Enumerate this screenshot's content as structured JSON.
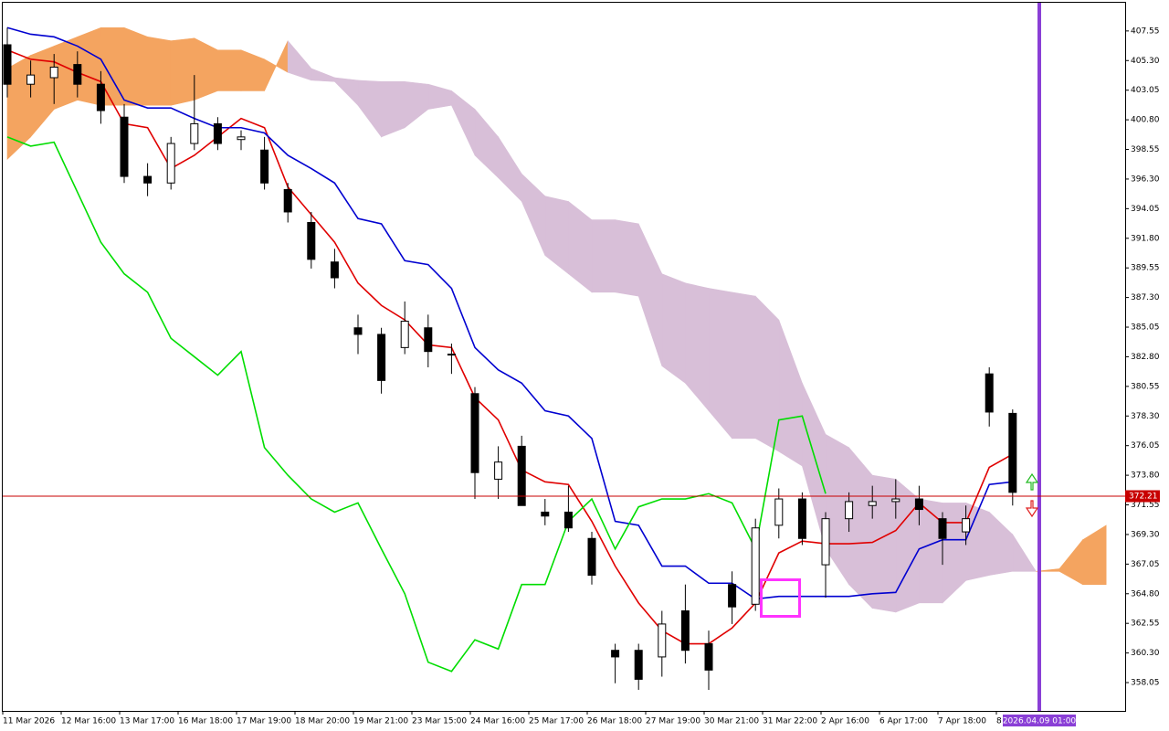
{
  "chart_data": {
    "type": "candlestick",
    "ylim": [
      355.9,
      409.9
    ],
    "yticks": [
      407.55,
      {
        "value": 405.3,
        "label": "405.30"
      },
      403.05,
      {
        "value": 400.8,
        "label": "400.80"
      },
      398.55,
      {
        "value": 396.3,
        "label": "396.30"
      },
      394.05,
      {
        "value": 391.8,
        "label": "391.80"
      },
      389.55,
      {
        "value": 387.3,
        "label": "387.30"
      },
      385.05,
      {
        "value": 382.8,
        "label": "382.80"
      },
      380.55,
      {
        "value": 378.3,
        "label": "378.30"
      },
      376.05,
      {
        "value": 373.8,
        "label": "373.80"
      },
      371.55,
      {
        "value": 369.3,
        "label": "369.30"
      },
      367.05,
      {
        "value": 364.8,
        "label": "364.80"
      },
      362.55,
      {
        "value": 360.3,
        "label": "360.30"
      },
      358.05
    ],
    "x_labels": [
      "11 Mar 2026",
      "12 Mar 16:00",
      "13 Mar 17:00",
      "16 Mar 18:00",
      "17 Mar 19:00",
      "18 Mar 20:00",
      "19 Mar 21:00",
      "23 Mar 15:00",
      "24 Mar 16:00",
      "25 Mar 17:00",
      "26 Mar 18:00",
      "27 Mar 19:00",
      "30 Mar 21:00",
      "31 Mar 22:00",
      "2 Apr 16:00",
      "6 Apr 17:00",
      "7 Apr 18:00",
      "8"
    ],
    "cursor_label": "2026.04.09 01:00",
    "price": {
      "value": 372.21,
      "color": "#c80000"
    },
    "up_color": "#ffffff",
    "down_color": "#000000",
    "ohlc": {
      "open": [
        406.5,
        403.5,
        404,
        405,
        403.5,
        401,
        396.5,
        396,
        399,
        400.5,
        399.3,
        398.5,
        395.5,
        393,
        390,
        385,
        384.5,
        383.5,
        385,
        383,
        380,
        373.5,
        376,
        371,
        371,
        369,
        360.5,
        360.5,
        360,
        363.5,
        361,
        365.5,
        364,
        370,
        372,
        367,
        370.5,
        371.5,
        371.8,
        372,
        370.5,
        369.5,
        381.5,
        378.5
      ],
      "high": [
        407.8,
        405.3,
        405.8,
        406,
        404.5,
        402,
        397.5,
        399.5,
        404.2,
        401,
        400,
        399.5,
        396,
        393.8,
        391,
        386,
        385,
        387,
        386,
        383.8,
        380.5,
        376,
        376.8,
        372,
        373,
        369.5,
        361,
        361,
        363.5,
        365.5,
        362,
        366.5,
        370.5,
        372.8,
        372.5,
        371,
        372.5,
        373,
        373.5,
        373,
        371,
        371.5,
        382,
        378.8
      ],
      "low": [
        402.5,
        402.5,
        402,
        402.5,
        400.5,
        396,
        395,
        395.5,
        398.5,
        398.5,
        398.5,
        395.5,
        393,
        389.5,
        388,
        383,
        380,
        383,
        382,
        381.5,
        372,
        372,
        372,
        370,
        369.5,
        365.5,
        358,
        357.5,
        358.5,
        359.5,
        357.5,
        362.5,
        363.5,
        369,
        368.5,
        364.5,
        369.5,
        370.5,
        370.5,
        370,
        367,
        368.5,
        377.5,
        371.5
      ],
      "close": [
        403.5,
        404.2,
        404.8,
        403.5,
        401.5,
        396.5,
        396,
        399,
        400.5,
        399,
        399.5,
        396,
        393.8,
        390.2,
        388.8,
        384.5,
        381,
        385.5,
        383.2,
        383,
        374,
        374.8,
        371.5,
        370.7,
        369.8,
        366.2,
        360,
        358.3,
        362.5,
        360.5,
        359,
        363.8,
        369.8,
        372,
        369,
        370.5,
        371.8,
        371.8,
        372,
        371.2,
        369,
        370.5,
        378.6,
        372.5
      ]
    },
    "lines": [
      {
        "color": "#e00000",
        "values": [
          406.1,
          405.4,
          405.2,
          404.4,
          403.7,
          400.5,
          400.2,
          397.1,
          398.1,
          399.5,
          400.9,
          400.2,
          395.7,
          393.6,
          391.5,
          388.4,
          386.7,
          385.6,
          383.7,
          383.5,
          379.7,
          378.0,
          374.2,
          373.3,
          373.1,
          370.3,
          366.9,
          364.1,
          362.0,
          361.0,
          361.0,
          362.2,
          364.1,
          367.9,
          368.8,
          368.6,
          368.6,
          368.7,
          369.6,
          371.7,
          370.2,
          370.2,
          374.4,
          375.4
        ]
      },
      {
        "color": "#0000d0",
        "values": [
          407.8,
          407.3,
          407.1,
          406.4,
          405.4,
          402.3,
          401.7,
          401.7,
          400.9,
          400.2,
          400.2,
          399.8,
          398.1,
          397.1,
          396.0,
          393.3,
          392.9,
          390.1,
          389.8,
          388.0,
          383.5,
          381.8,
          380.8,
          378.7,
          378.3,
          376.6,
          370.3,
          370.0,
          366.9,
          366.9,
          365.6,
          365.6,
          364.4,
          364.6,
          364.6,
          364.6,
          364.6,
          364.8,
          364.9,
          368.2,
          368.9,
          368.9,
          373.1,
          373.3
        ]
      },
      {
        "color": "#00dd00",
        "values": [
          399.5,
          398.8,
          399.1,
          395.3,
          391.5,
          389.1,
          387.7,
          384.2,
          382.8,
          381.4,
          383.2,
          375.9,
          373.8,
          372.0,
          371.0,
          371.7,
          368.2,
          364.8,
          359.6,
          358.9,
          361.3,
          360.6,
          365.5,
          365.5,
          370.3,
          372.0,
          368.2,
          371.4,
          372.0,
          372.0,
          372.4,
          371.7,
          368.2,
          378.0,
          378.3,
          372.4
        ]
      }
    ],
    "cloud": {
      "a_color": "#f4a460",
      "b_color": "#d8bfd8",
      "span_a": [
        404.7,
        405.7,
        406.4,
        407.1,
        407.8,
        407.8,
        407.1,
        406.8,
        407.0,
        406.1,
        406.1,
        405.4,
        404.4,
        403.8,
        403.7,
        401.9,
        399.5,
        400.2,
        401.6,
        401.9,
        398.1,
        396.4,
        394.6,
        390.5,
        389.1,
        387.7,
        387.7,
        387.4,
        382.1,
        380.8,
        378.7,
        376.6,
        376.6,
        375.6,
        374.5,
        368.2,
        365.5,
        363.7,
        363.4,
        364.1,
        364.1,
        365.8,
        366.2,
        366.5,
        366.5,
        366.7,
        368.9,
        370.0
      ],
      "span_b": [
        397.8,
        399.5,
        401.6,
        402.3,
        401.9,
        401.9,
        401.9,
        401.9,
        402.3,
        403.0,
        403.0,
        403.0,
        406.8,
        404.7,
        404.0,
        403.8,
        403.7,
        403.7,
        403.5,
        403.0,
        401.6,
        399.5,
        396.7,
        395.0,
        394.6,
        393.2,
        393.2,
        392.9,
        389.1,
        388.4,
        388.0,
        387.7,
        387.4,
        385.6,
        380.8,
        376.9,
        375.9,
        373.8,
        373.5,
        372.0,
        371.7,
        371.7,
        371.0,
        369.3,
        366.5,
        366.5,
        365.5,
        365.5
      ]
    }
  }
}
